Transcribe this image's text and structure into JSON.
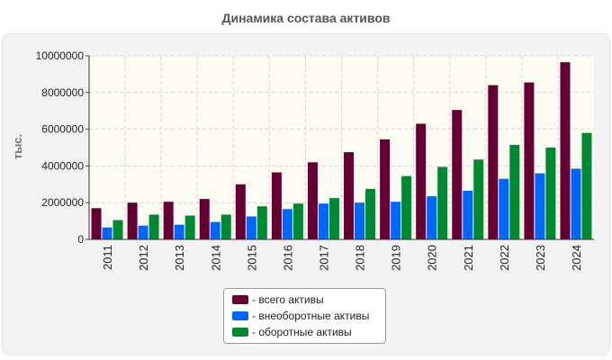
{
  "chart_data": {
    "type": "bar",
    "title": "Динамика состава активов",
    "xlabel": "",
    "ylabel": "тыс.",
    "ylim": [
      0,
      10000000
    ],
    "yticks": [
      "0",
      "2000000",
      "4000000",
      "6000000",
      "8000000",
      "10000000"
    ],
    "grid": true,
    "categories": [
      "2011",
      "2012",
      "2013",
      "2014",
      "2015",
      "2016",
      "2017",
      "2018",
      "2019",
      "2020",
      "2021",
      "2022",
      "2023",
      "2024"
    ],
    "series": [
      {
        "name": "всего активы",
        "legend_label": "- всего активы",
        "color": "#660033",
        "values": [
          1700000,
          2000000,
          2050000,
          2200000,
          3000000,
          3650000,
          4200000,
          4750000,
          5450000,
          6300000,
          7050000,
          8400000,
          8550000,
          9650000
        ]
      },
      {
        "name": "внеоборотные активы",
        "legend_label": "- внеоборотные активы",
        "color": "#0066ff",
        "values": [
          650000,
          750000,
          800000,
          950000,
          1250000,
          1650000,
          1950000,
          2000000,
          2050000,
          2350000,
          2650000,
          3300000,
          3600000,
          3850000
        ]
      },
      {
        "name": "оборотные активы",
        "legend_label": "- оборотные активы",
        "color": "#008833",
        "values": [
          1050000,
          1350000,
          1300000,
          1350000,
          1800000,
          1950000,
          2250000,
          2750000,
          3450000,
          3950000,
          4350000,
          5150000,
          5000000,
          5800000
        ]
      }
    ],
    "legend_position": "bottom-center"
  }
}
